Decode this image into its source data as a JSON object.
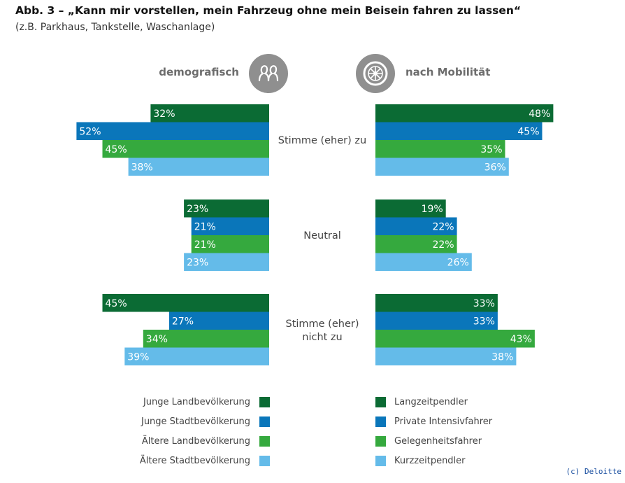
{
  "title": "Abb. 3 – „Kann mir vorstellen, mein Fahrzeug ohne mein Beisein fahren zu lassen“",
  "subtitle": "(z.B. Parkhaus, Tankstelle, Waschanlage)",
  "headers": {
    "left": "demografisch",
    "right": "nach Mobilität",
    "left_icon": "people-icon",
    "right_icon": "wheel-icon"
  },
  "credit": "(c) Deloitte",
  "colors": {
    "dark_green": "#0b6b34",
    "blue": "#0a76ba",
    "green": "#35a93e",
    "light_blue": "#64bbe9",
    "icon_gray": "#8f8f8f"
  },
  "chart_data": [
    {
      "type": "bar",
      "orientation": "horizontal",
      "direction": "leftward",
      "panel": "demografisch",
      "categories": [
        "Stimme (eher) zu",
        "Neutral",
        "Stimme (eher) nicht zu"
      ],
      "series": [
        {
          "name": "Junge Landbevölkerung",
          "color": "#0b6b34",
          "values": [
            32,
            23,
            45
          ],
          "labels": [
            "32%",
            "23%",
            "45%"
          ]
        },
        {
          "name": "Junge Stadtbevölkerung",
          "color": "#0a76ba",
          "values": [
            52,
            21,
            27
          ],
          "labels": [
            "52%",
            "21%",
            "27%"
          ]
        },
        {
          "name": "Ältere Landbevölkerung",
          "color": "#35a93e",
          "values": [
            45,
            21,
            34
          ],
          "labels": [
            "45%",
            "21%",
            "34%"
          ]
        },
        {
          "name": "Ältere Stadtbevölkerung",
          "color": "#64bbe9",
          "values": [
            38,
            23,
            39
          ],
          "labels": [
            "38%",
            "23%",
            "39%"
          ]
        }
      ],
      "unit": "%"
    },
    {
      "type": "bar",
      "orientation": "horizontal",
      "direction": "rightward",
      "panel": "nach Mobilität",
      "categories": [
        "Stimme (eher) zu",
        "Neutral",
        "Stimme (eher) nicht zu"
      ],
      "series": [
        {
          "name": "Langzeitpendler",
          "color": "#0b6b34",
          "values": [
            48,
            19,
            33
          ],
          "labels": [
            "48%",
            "19%",
            "33%"
          ]
        },
        {
          "name": "Private Intensivfahrer",
          "color": "#0a76ba",
          "values": [
            45,
            22,
            33
          ],
          "labels": [
            "45%",
            "22%",
            "33%"
          ]
        },
        {
          "name": "Gelegenheitsfahrer",
          "color": "#35a93e",
          "values": [
            35,
            22,
            43
          ],
          "labels": [
            "35%",
            "22%",
            "43%"
          ]
        },
        {
          "name": "Kurzzeitpendler",
          "color": "#64bbe9",
          "values": [
            36,
            26,
            38
          ],
          "labels": [
            "36%",
            "26%",
            "38%"
          ]
        }
      ],
      "unit": "%"
    }
  ],
  "category_display": [
    [
      "Stimme (eher) zu"
    ],
    [
      "Neutral"
    ],
    [
      "Stimme (eher)",
      "nicht zu"
    ]
  ]
}
